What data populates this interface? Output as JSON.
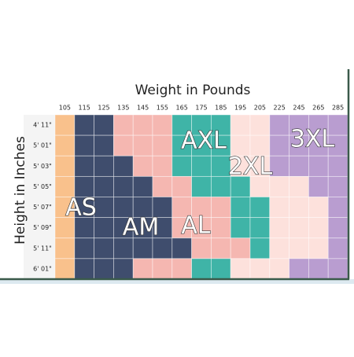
{
  "title": "Weight in Pounds",
  "y_label": "Height in Inches",
  "columns": [
    "105",
    "115",
    "125",
    "135",
    "145",
    "155",
    "165",
    "175",
    "185",
    "195",
    "205",
    "225",
    "245",
    "265",
    "285"
  ],
  "rows": [
    "4' 11\"",
    "5' 01\"",
    "5' 03\"",
    "5' 05\"",
    "5' 07\"",
    "5' 09\"",
    "5' 11\"",
    "6' 01\""
  ],
  "sizes": [
    {
      "label": "AS",
      "color": "#f9c18c"
    },
    {
      "label": "AM",
      "color": "#3f4d6d"
    },
    {
      "label": "AL",
      "color": "#f5b7b1"
    },
    {
      "label": "AXL",
      "color": "#3fb4a7"
    },
    {
      "label": "2XL",
      "color": "#fde1dc"
    },
    {
      "label": "3XL",
      "color": "#b99dd0"
    }
  ],
  "grid": [
    [
      "AS",
      "AM",
      "AM",
      "AL",
      "AL",
      "AL",
      "AXL",
      "AXL",
      "AXL",
      "2XL",
      "2XL",
      "3XL",
      "3XL",
      "3XL",
      "3XL"
    ],
    [
      "AS",
      "AM",
      "AM",
      "AL",
      "AL",
      "AL",
      "AXL",
      "AXL",
      "AXL",
      "2XL",
      "2XL",
      "3XL",
      "3XL",
      "3XL",
      "3XL"
    ],
    [
      "AS",
      "AM",
      "AM",
      "AM",
      "AL",
      "AL",
      "AXL",
      "AXL",
      "AXL",
      "2XL",
      "2XL",
      "3XL",
      "3XL",
      "3XL",
      "3XL"
    ],
    [
      "AS",
      "AM",
      "AM",
      "AM",
      "AM",
      "AL",
      "AL",
      "AXL",
      "AXL",
      "AXL",
      "2XL",
      "2XL",
      "2XL",
      "3XL",
      "3XL"
    ],
    [
      "AS",
      "AM",
      "AM",
      "AM",
      "AM",
      "AM",
      "AL",
      "AL",
      "AL",
      "AXL",
      "AXL",
      "2XL",
      "2XL",
      "2XL",
      "3XL"
    ],
    [
      "AS",
      "AM",
      "AM",
      "AM",
      "AM",
      "AM",
      "AL",
      "AL",
      "AL",
      "AXL",
      "AXL",
      "2XL",
      "2XL",
      "2XL",
      "3XL"
    ],
    [
      "AS",
      "AM",
      "AM",
      "AM",
      "AM",
      "AM",
      "AM",
      "AL",
      "AL",
      "AL",
      "AXL",
      "2XL",
      "2XL",
      "2XL",
      "3XL"
    ],
    [
      "AS",
      "AM",
      "AM",
      "AM",
      "AL",
      "AL",
      "AL",
      "AXL",
      "AXL",
      "2XL",
      "2XL",
      "2XL",
      "3XL",
      "3XL",
      "3XL"
    ]
  ]
}
